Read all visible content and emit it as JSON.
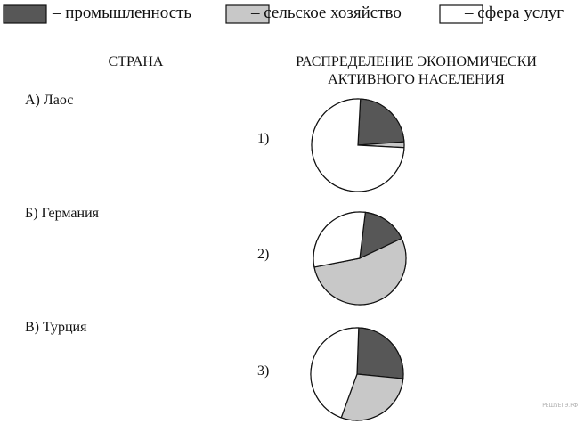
{
  "legend": [
    {
      "label": "– промышленность",
      "color": "#575757"
    },
    {
      "label": "– сельское хозяйство",
      "color": "#c8c8c8"
    },
    {
      "label": "– сфера услуг",
      "color": "#ffffff"
    }
  ],
  "headers": {
    "country": "СТРАНА",
    "distribution": "РАСПРЕДЕЛЕНИЕ ЭКОНОМИЧЕСКИ АКТИВНОГО НАСЕЛЕНИЯ"
  },
  "countries": [
    "А) Лаос",
    "Б) Германия",
    "В) Турция"
  ],
  "options": [
    {
      "label": "1)",
      "values": [
        23,
        2,
        75
      ]
    },
    {
      "label": "2)",
      "values": [
        16,
        54,
        30
      ]
    },
    {
      "label": "3)",
      "values": [
        26,
        29,
        45
      ]
    }
  ],
  "watermark": "РЕШУЕГЭ.РФ"
}
